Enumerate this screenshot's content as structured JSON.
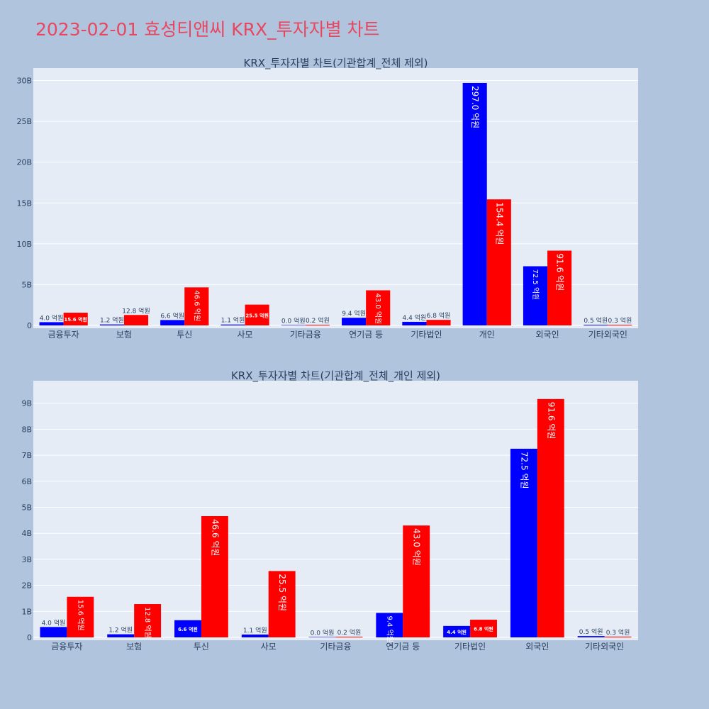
{
  "page": {
    "title": "2023-02-01 효성티앤씨 KRX_투자자별 차트"
  },
  "colors": {
    "series_a": "#0000ff",
    "series_b": "#ff0000"
  },
  "chart_data": [
    {
      "type": "bar",
      "title": "KRX_투자자별 차트(기관합계_전체 제외)",
      "categories": [
        "금융투자",
        "보험",
        "투신",
        "사모",
        "기타금융",
        "연기금 등",
        "기타법인",
        "개인",
        "외국인",
        "기타외국인"
      ],
      "series": [
        {
          "values": [
            0.4,
            0.12,
            0.66,
            0.11,
            0.0,
            0.94,
            0.44,
            29.7,
            7.25,
            0.05
          ],
          "labels": [
            "4.0 억원",
            "1.2 억원",
            "6.6 억원",
            "1.1 억원",
            "0.0 억원",
            "9.4 억원",
            "4.4 억원",
            "297.0 억원",
            "72.5 억원",
            "0.5 억원"
          ]
        },
        {
          "values": [
            1.56,
            1.28,
            4.66,
            2.55,
            0.02,
            4.3,
            0.68,
            15.44,
            9.16,
            0.03
          ],
          "labels": [
            "15.6 억원",
            "12.8 억원",
            "46.6 억원",
            "25.5 억원",
            "0.2 억원",
            "43.0 억원",
            "6.8 억원",
            "154.4 억원",
            "91.6 억원",
            "0.3 억원"
          ]
        }
      ],
      "yticks": [
        "0",
        "5B",
        "10B",
        "15B",
        "20B",
        "25B",
        "30B"
      ],
      "ylim": [
        0,
        31
      ],
      "grid": true
    },
    {
      "type": "bar",
      "title": "KRX_투자자별 차트(기관합계_전체_개인 제외)",
      "categories": [
        "금융투자",
        "보험",
        "투신",
        "사모",
        "기타금융",
        "연기금 등",
        "기타법인",
        "외국인",
        "기타외국인"
      ],
      "series": [
        {
          "values": [
            0.4,
            0.12,
            0.66,
            0.11,
            0.0,
            0.94,
            0.44,
            7.25,
            0.05
          ],
          "labels": [
            "4.0 억원",
            "1.2 억원",
            "6.6 억원",
            "1.1 억원",
            "0.0 억원",
            "9.4 억원",
            "4.4 억원",
            "72.5 억원",
            "0.5 억원"
          ]
        },
        {
          "values": [
            1.56,
            1.28,
            4.66,
            2.55,
            0.02,
            4.3,
            0.68,
            9.16,
            0.03
          ],
          "labels": [
            "15.6 억원",
            "12.8 억원",
            "46.6 억원",
            "25.5 억원",
            "0.2 억원",
            "43.0 억원",
            "6.8 억원",
            "91.6 억원",
            "0.3 억원"
          ]
        }
      ],
      "yticks": [
        "0",
        "1B",
        "2B",
        "3B",
        "4B",
        "5B",
        "6B",
        "7B",
        "8B",
        "9B"
      ],
      "ylim": [
        0,
        9.7
      ],
      "grid": true
    }
  ]
}
